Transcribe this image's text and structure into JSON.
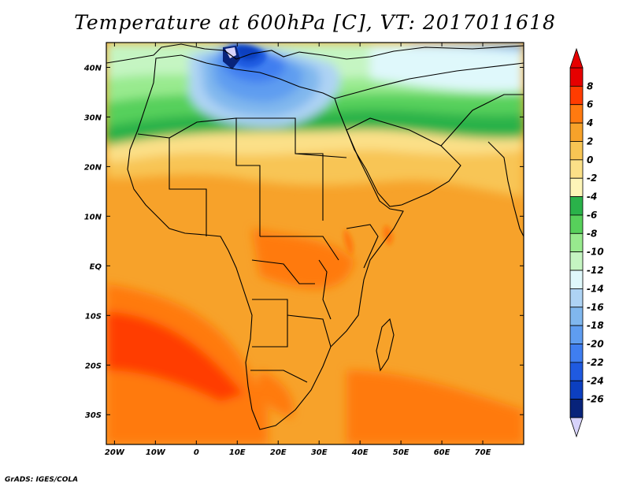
{
  "title": "Temperature at 600hPa [C], VT: 2017011618",
  "credit": "GrADS: IGES/COLA",
  "map": {
    "lon_range": [
      -22,
      80
    ],
    "lat_range": [
      -36,
      45
    ],
    "x_ticks": [
      "20W",
      "10W",
      "0",
      "10E",
      "20E",
      "30E",
      "40E",
      "50E",
      "60E",
      "70E"
    ],
    "y_ticks": [
      "40N",
      "30N",
      "20N",
      "10N",
      "EQ",
      "10S",
      "20S",
      "30S"
    ]
  },
  "colorbar": {
    "labels": [
      "8",
      "6",
      "4",
      "2",
      "0",
      "-2",
      "-4",
      "-6",
      "-8",
      "-10",
      "-12",
      "-14",
      "-16",
      "-18",
      "-20",
      "-22",
      "-24",
      "-26"
    ],
    "colors": [
      "#e60000",
      "#ff3c00",
      "#ff7a10",
      "#f7a22a",
      "#f8c554",
      "#fbe088",
      "#fdf5b8",
      "#2ab24a",
      "#57d05b",
      "#98ea8e",
      "#c5f5c2",
      "#dff8fb",
      "#aed3f4",
      "#80b7ee",
      "#5f9df0",
      "#3f7ef0",
      "#1f5ae0",
      "#0c3fc0",
      "#08237a"
    ],
    "bottom_arrow_color": "#d7d3fb",
    "top_arrow_color": "#e60000"
  }
}
